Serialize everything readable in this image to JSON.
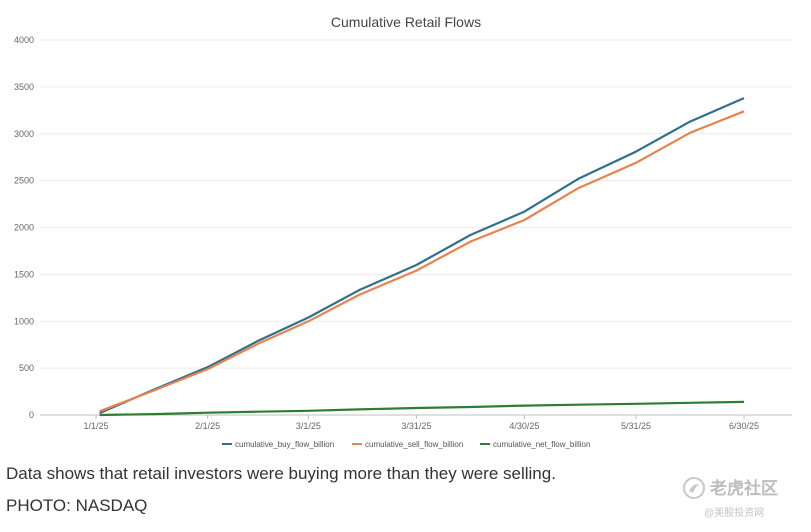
{
  "chart_data": {
    "type": "line",
    "title": "Cumulative Retail Flows",
    "xlabel": "",
    "ylabel": "",
    "x_ticks": [
      "1/1/25",
      "2/1/25",
      "3/1/25",
      "3/31/25",
      "4/30/25",
      "5/31/25",
      "6/30/25"
    ],
    "y_ticks": [
      0,
      500,
      1000,
      1500,
      2000,
      2500,
      3000,
      3500,
      4000
    ],
    "ylim": [
      0,
      4000
    ],
    "grid": true,
    "legend_position": "bottom",
    "series": [
      {
        "name": "cumulative_buy_flow_billion",
        "color": "#31708a",
        "x": [
          "1/2/25",
          "1/17/25",
          "2/1/25",
          "2/15/25",
          "3/1/25",
          "3/15/25",
          "3/31/25",
          "4/15/25",
          "4/30/25",
          "5/15/25",
          "5/31/25",
          "6/15/25",
          "6/30/25"
        ],
        "values": [
          20,
          270,
          510,
          790,
          1040,
          1330,
          1600,
          1920,
          2170,
          2520,
          2810,
          3130,
          3380
        ]
      },
      {
        "name": "cumulative_sell_flow_billion",
        "color": "#e8834f",
        "x": [
          "1/2/25",
          "1/17/25",
          "2/1/25",
          "2/15/25",
          "3/1/25",
          "3/15/25",
          "3/31/25",
          "4/15/25",
          "4/30/25",
          "5/15/25",
          "5/31/25",
          "6/15/25",
          "6/30/25"
        ],
        "values": [
          40,
          260,
          490,
          760,
          1000,
          1280,
          1540,
          1850,
          2080,
          2420,
          2690,
          3010,
          3240
        ]
      },
      {
        "name": "cumulative_net_flow_billion",
        "color": "#2e7d32",
        "x": [
          "1/2/25",
          "1/17/25",
          "2/1/25",
          "2/15/25",
          "3/1/25",
          "3/15/25",
          "3/31/25",
          "4/15/25",
          "4/30/25",
          "5/15/25",
          "5/31/25",
          "6/15/25",
          "6/30/25"
        ],
        "values": [
          0,
          10,
          25,
          35,
          45,
          60,
          75,
          85,
          100,
          110,
          120,
          130,
          140
        ]
      }
    ]
  },
  "caption": "Data shows that retail investors were buying more than they were selling.",
  "credit": "PHOTO: NASDAQ",
  "watermark": {
    "main": "老虎社区",
    "sub": "@美股投资网"
  }
}
